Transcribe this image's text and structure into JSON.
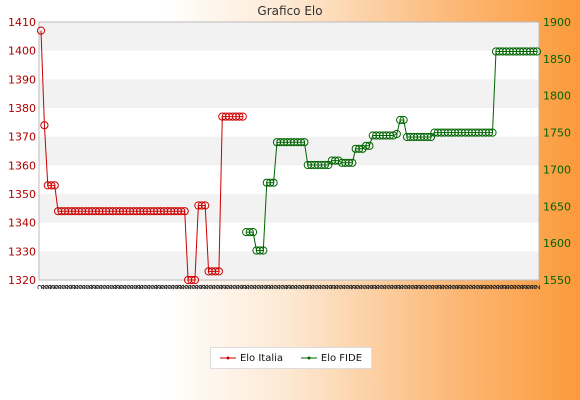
{
  "chart_data": {
    "type": "line",
    "title": "Grafico Elo",
    "xlabel": "",
    "ylabel": "",
    "y_left": {
      "ylim": [
        1320,
        1410
      ],
      "ticks": [
        1320,
        1330,
        1340,
        1350,
        1360,
        1370,
        1380,
        1390,
        1400,
        1410
      ],
      "color": "#cc0000"
    },
    "y_right": {
      "ylim": [
        1550,
        1900
      ],
      "ticks": [
        1550,
        1600,
        1650,
        1700,
        1750,
        1800,
        1850,
        1900
      ],
      "color": "#006400"
    },
    "grid": "horizontal bands",
    "legend_position": "bottom-center",
    "x_count": 146,
    "x_tick_label": "2",
    "series": [
      {
        "name": "Elo Italia",
        "axis": "left",
        "color": "#cc0000",
        "segments": [
          {
            "from": 0,
            "to": 0,
            "value": 1407
          },
          {
            "from": 1,
            "to": 1,
            "value": 1374
          },
          {
            "from": 2,
            "to": 4,
            "value": 1353
          },
          {
            "from": 5,
            "to": 42,
            "value": 1344
          },
          {
            "from": 43,
            "to": 45,
            "value": 1320
          },
          {
            "from": 46,
            "to": 48,
            "value": 1346
          },
          {
            "from": 49,
            "to": 52,
            "value": 1323
          },
          {
            "from": 53,
            "to": 59,
            "value": 1377
          }
        ]
      },
      {
        "name": "Elo FIDE",
        "axis": "right",
        "color": "#006400",
        "segments": [
          {
            "from": 60,
            "to": 62,
            "value": 1615
          },
          {
            "from": 63,
            "to": 65,
            "value": 1590
          },
          {
            "from": 66,
            "to": 68,
            "value": 1682
          },
          {
            "from": 69,
            "to": 77,
            "value": 1737
          },
          {
            "from": 78,
            "to": 84,
            "value": 1706
          },
          {
            "from": 85,
            "to": 87,
            "value": 1712
          },
          {
            "from": 88,
            "to": 91,
            "value": 1709
          },
          {
            "from": 92,
            "to": 94,
            "value": 1728
          },
          {
            "from": 95,
            "to": 96,
            "value": 1732
          },
          {
            "from": 97,
            "to": 103,
            "value": 1746
          },
          {
            "from": 104,
            "to": 104,
            "value": 1748
          },
          {
            "from": 105,
            "to": 106,
            "value": 1767
          },
          {
            "from": 107,
            "to": 114,
            "value": 1744
          },
          {
            "from": 115,
            "to": 131,
            "value": 1750
          },
          {
            "from": 132,
            "to": 132,
            "value": 1750
          },
          {
            "from": 133,
            "to": 145,
            "value": 1860
          }
        ]
      }
    ]
  }
}
